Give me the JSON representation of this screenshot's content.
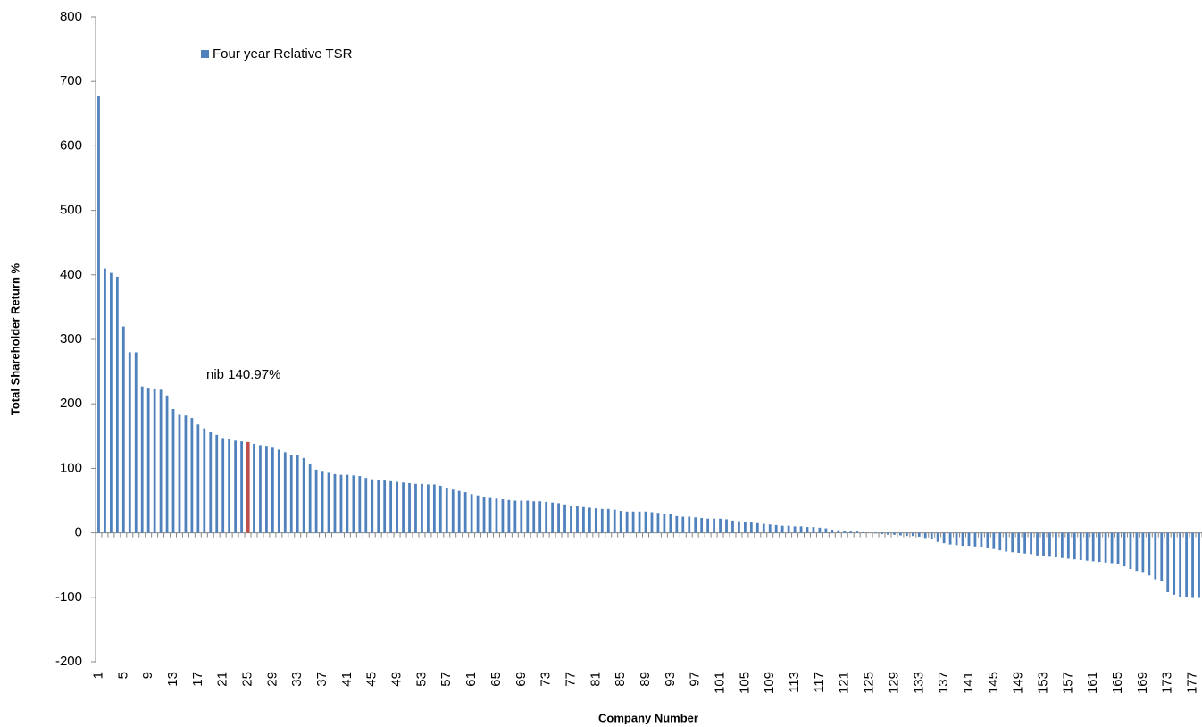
{
  "chart_data": {
    "type": "bar",
    "x_label": "Company Number",
    "y_label": "Total Shareholder Return %",
    "annotation": "nib 140.97%",
    "categories": [
      "1",
      null,
      null,
      null,
      "5",
      null,
      null,
      null,
      "9",
      null,
      null,
      null,
      "13",
      null,
      null,
      null,
      "17",
      null,
      null,
      null,
      "21",
      null,
      null,
      null,
      "25",
      null,
      null,
      null,
      "29",
      null,
      null,
      null,
      "33",
      null,
      null,
      null,
      "37",
      null,
      null,
      null,
      "41",
      null,
      null,
      null,
      "45",
      null,
      null,
      null,
      "49",
      null,
      null,
      null,
      "53",
      null,
      null,
      null,
      "57",
      null,
      null,
      null,
      "61",
      null,
      null,
      null,
      "65",
      null,
      null,
      null,
      "69",
      null,
      null,
      null,
      "73",
      null,
      null,
      null,
      "77",
      null,
      null,
      null,
      "81",
      null,
      null,
      null,
      "85",
      null,
      null,
      null,
      "89",
      null,
      null,
      null,
      "93",
      null,
      null,
      null,
      "97",
      null,
      null,
      null,
      "101",
      null,
      null,
      null,
      "105",
      null,
      null,
      null,
      "109",
      null,
      null,
      null,
      "113",
      null,
      null,
      null,
      "117",
      null,
      null,
      null,
      "121",
      null,
      null,
      null,
      "125",
      null,
      null,
      null,
      "129",
      null,
      null,
      null,
      "133",
      null,
      null,
      null,
      "137",
      null,
      null,
      null,
      "141",
      null,
      null,
      null,
      "145",
      null,
      null,
      null,
      "149",
      null,
      null,
      null,
      "153",
      null,
      null,
      null,
      "157",
      null,
      null,
      null,
      "161",
      null,
      null,
      null,
      "165",
      null,
      null,
      null,
      "169",
      null,
      null,
      null,
      "173",
      null,
      null,
      null,
      "177",
      null
    ],
    "series": [
      {
        "name": "Four year Relative TSR",
        "color": "#4f81bd",
        "values": [
          678,
          410,
          403,
          397,
          320,
          280,
          280,
          227,
          225,
          224,
          222,
          213,
          192,
          183,
          182,
          178,
          168,
          162,
          156,
          152,
          147,
          145,
          143,
          142,
          140.97,
          138,
          136,
          135,
          132,
          129,
          125,
          121,
          120,
          116,
          106,
          98,
          96,
          93,
          91,
          90,
          90,
          89,
          88,
          85,
          83,
          82,
          81,
          80,
          79,
          78,
          77,
          76,
          76,
          75,
          75,
          73,
          70,
          67,
          65,
          63,
          60,
          58,
          56,
          54,
          53,
          52,
          51,
          50,
          50,
          50,
          49,
          49,
          48,
          47,
          46,
          44,
          42,
          41,
          40,
          39,
          38,
          37,
          37,
          36,
          34,
          33,
          33,
          33,
          33,
          32,
          31,
          30,
          29,
          26,
          25,
          25,
          24,
          23,
          22,
          22,
          22,
          21,
          19,
          18,
          17,
          16,
          15,
          14,
          13,
          12,
          11,
          11,
          10,
          10,
          9,
          9,
          8,
          7,
          5,
          4,
          3,
          2,
          2,
          1,
          0,
          -1,
          -2,
          -3,
          -3,
          -4,
          -5,
          -5,
          -6,
          -8,
          -10,
          -14,
          -16,
          -18,
          -19,
          -20,
          -20,
          -21,
          -22,
          -24,
          -25,
          -27,
          -29,
          -30,
          -31,
          -32,
          -33,
          -35,
          -36,
          -37,
          -38,
          -39,
          -40,
          -41,
          -42,
          -43,
          -44,
          -45,
          -46,
          -47,
          -48,
          -52,
          -56,
          -59,
          -62,
          -66,
          -72,
          -75,
          -92,
          -96,
          -99,
          -100,
          -101,
          -101
        ]
      }
    ],
    "highlight": {
      "index": 24,
      "color": "#c0504d"
    },
    "ylim": [
      -200,
      800
    ],
    "yticks": [
      -200,
      -100,
      0,
      100,
      200,
      300,
      400,
      500,
      600,
      700,
      800
    ],
    "grid": false
  }
}
